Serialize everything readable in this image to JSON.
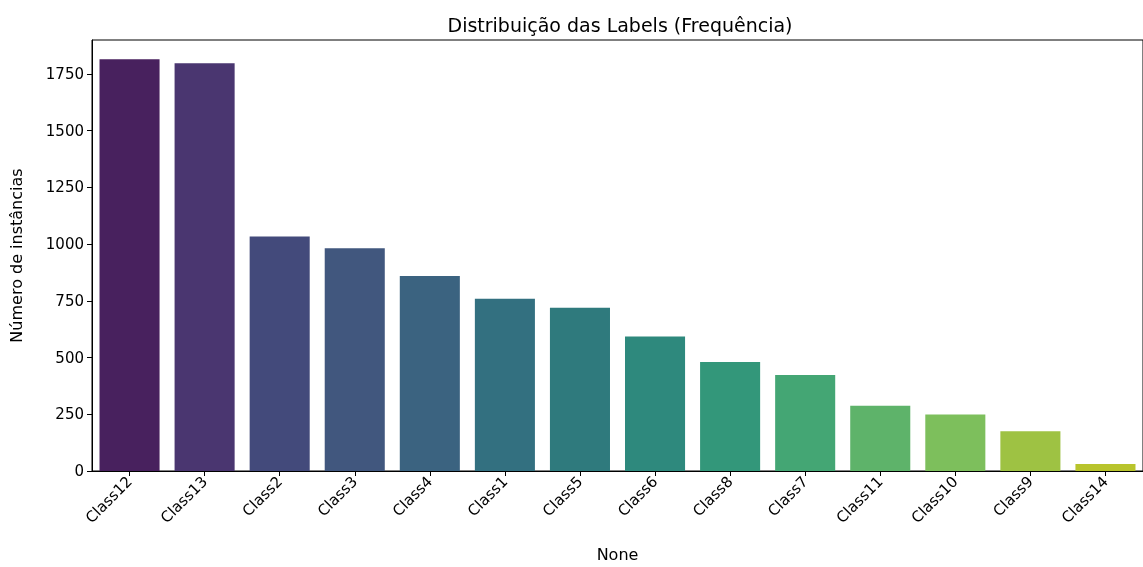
{
  "chart_data": {
    "type": "bar",
    "title": "Distribuição das Labels (Frequência)",
    "xlabel": "None",
    "ylabel": "Número de instâncias",
    "categories": [
      "Class12",
      "Class13",
      "Class2",
      "Class3",
      "Class4",
      "Class1",
      "Class5",
      "Class6",
      "Class8",
      "Class7",
      "Class11",
      "Class10",
      "Class9",
      "Class14"
    ],
    "values": [
      1815,
      1798,
      1034,
      982,
      860,
      759,
      720,
      593,
      480,
      423,
      288,
      249,
      175,
      31
    ],
    "colors": [
      "#48215e",
      "#4a3670",
      "#434a7b",
      "#41577e",
      "#3b6380",
      "#337080",
      "#2f7a7d",
      "#2e897d",
      "#33977a",
      "#44a674",
      "#5eb36a",
      "#7dbf5c",
      "#9ec243",
      "#b8c42c"
    ],
    "ylim": [
      0,
      1900
    ],
    "yticks": [
      0,
      250,
      500,
      750,
      1000,
      1250,
      1500,
      1750
    ],
    "grid": false
  }
}
